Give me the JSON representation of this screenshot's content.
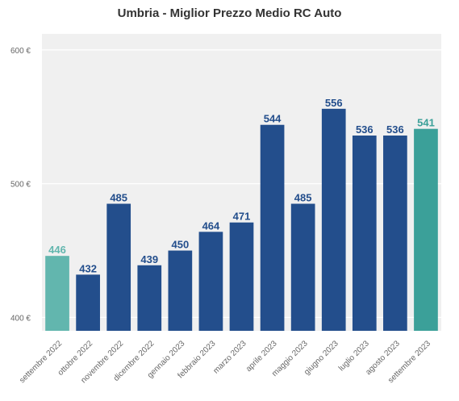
{
  "chart_data": {
    "type": "bar",
    "title": "Umbria - Miglior Prezzo Medio RC Auto",
    "xlabel": "",
    "ylabel": "",
    "y_tick_labels": [
      "400 €",
      "500 €",
      "600 €"
    ],
    "y_ticks": [
      400,
      500,
      600
    ],
    "ylim": [
      390,
      612
    ],
    "grid": true,
    "categories": [
      "settembre 2022",
      "ottobre 2022",
      "novembre 2022",
      "dicembre 2022",
      "gennaio 2023",
      "febbraio 2023",
      "marzo 2023",
      "aprile 2023",
      "maggio 2023",
      "giugno 2023",
      "luglio 2023",
      "agosto 2023",
      "settembre 2023"
    ],
    "values": [
      446,
      432,
      485,
      439,
      450,
      464,
      471,
      544,
      485,
      556,
      536,
      536,
      541
    ],
    "bar_colors": [
      "#62b6ae",
      "#234e8c",
      "#234e8c",
      "#234e8c",
      "#234e8c",
      "#234e8c",
      "#234e8c",
      "#234e8c",
      "#234e8c",
      "#234e8c",
      "#234e8c",
      "#234e8c",
      "#3ba099"
    ],
    "label_colors": [
      "#62b6ae",
      "#234e8c",
      "#234e8c",
      "#234e8c",
      "#234e8c",
      "#234e8c",
      "#234e8c",
      "#234e8c",
      "#234e8c",
      "#234e8c",
      "#234e8c",
      "#234e8c",
      "#3ba099"
    ],
    "plot_background": "#f0f0f0",
    "grid_color": "#ffffff"
  }
}
